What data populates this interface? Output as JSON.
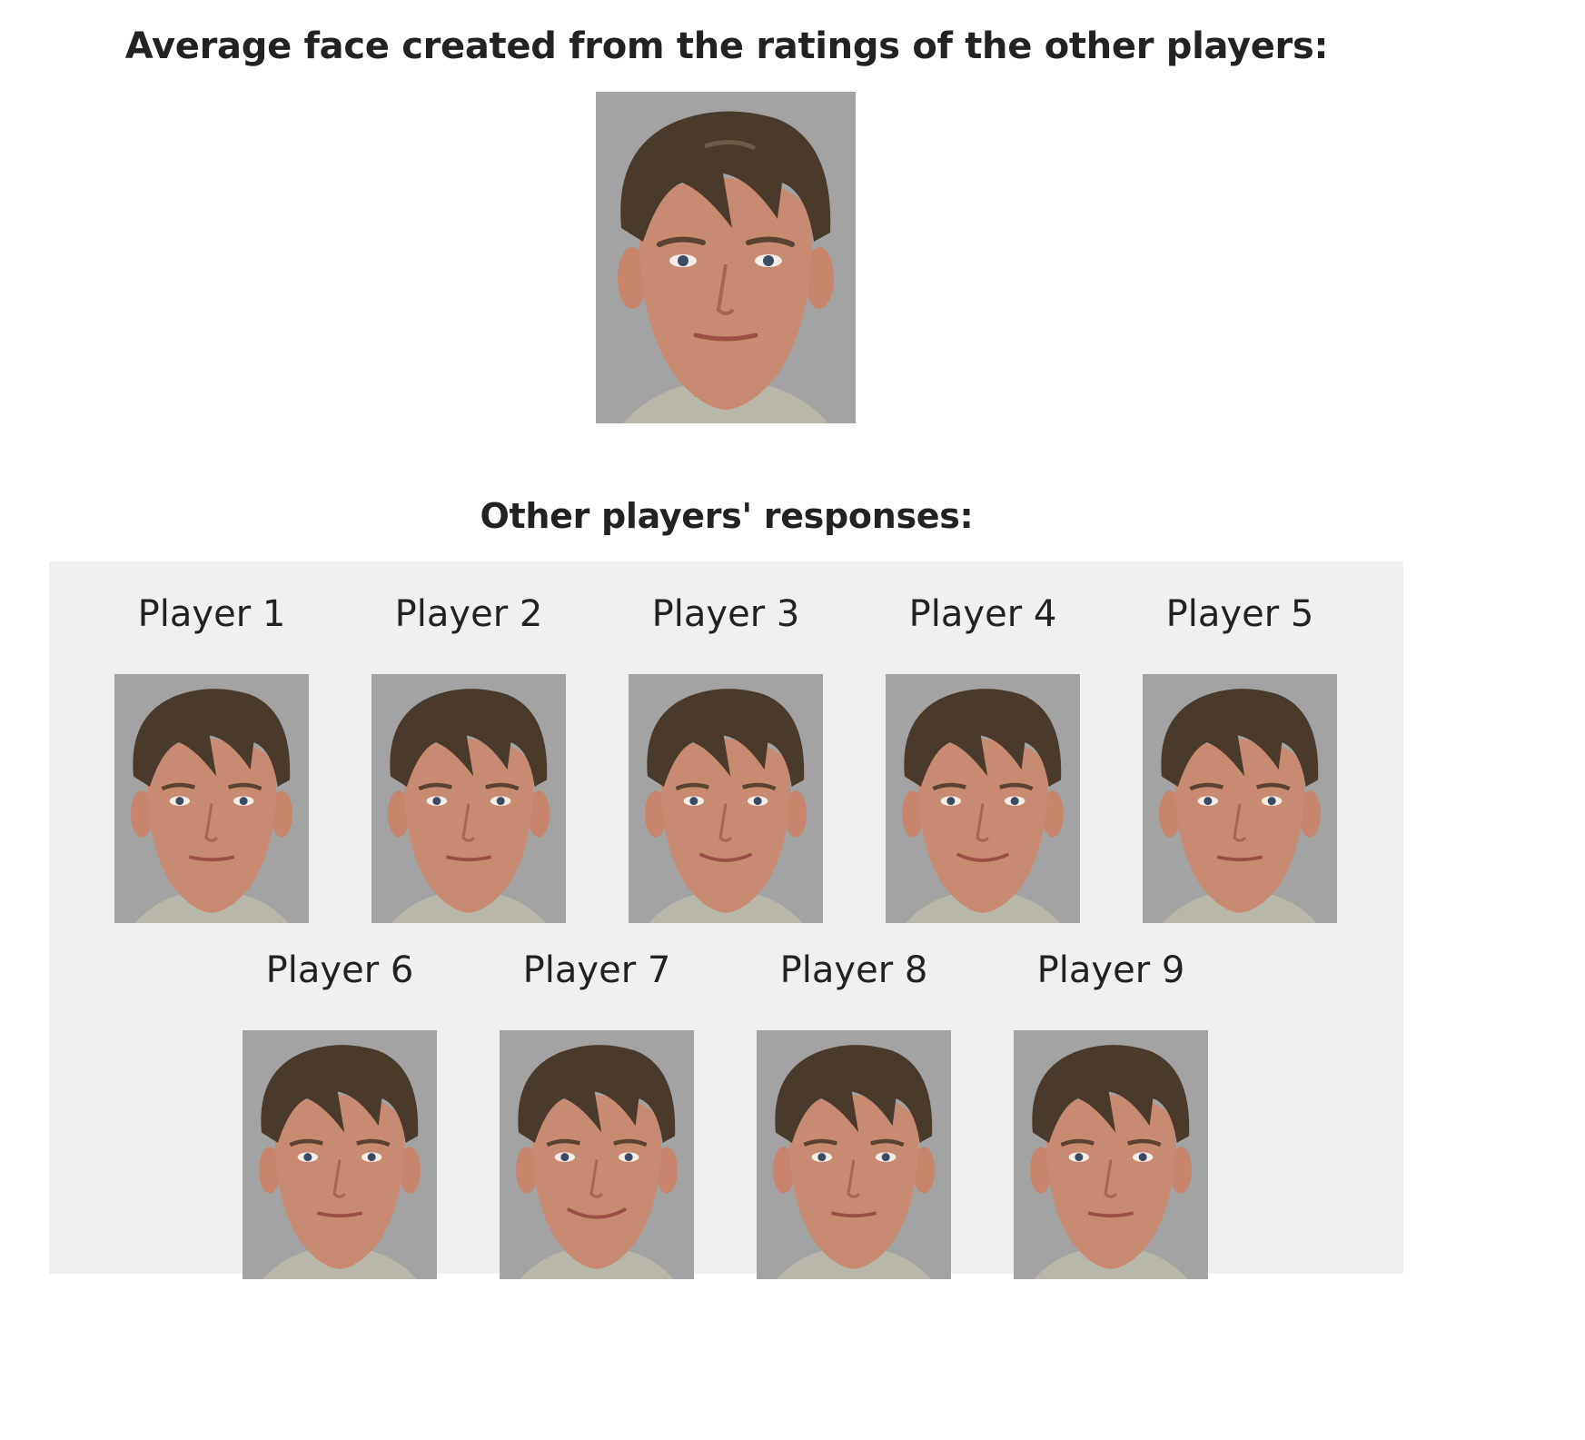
{
  "average_section": {
    "title": "Average face created from the ratings of the other players:",
    "image_icon": "face-portrait-image"
  },
  "responses_section": {
    "title": "Other players' responses:",
    "players": [
      {
        "label": "Player 1",
        "image_icon": "face-portrait-image"
      },
      {
        "label": "Player 2",
        "image_icon": "face-portrait-image"
      },
      {
        "label": "Player 3",
        "image_icon": "face-portrait-image"
      },
      {
        "label": "Player 4",
        "image_icon": "face-portrait-image"
      },
      {
        "label": "Player 5",
        "image_icon": "face-portrait-image"
      },
      {
        "label": "Player 6",
        "image_icon": "face-portrait-image"
      },
      {
        "label": "Player 7",
        "image_icon": "face-portrait-image"
      },
      {
        "label": "Player 8",
        "image_icon": "face-portrait-image"
      },
      {
        "label": "Player 9",
        "image_icon": "face-portrait-image"
      }
    ]
  },
  "colors": {
    "photo_background": "#a3a3a3",
    "panel_background": "#f0f0f0",
    "skin": "#c98a72",
    "hair": "#4a3a2c"
  }
}
